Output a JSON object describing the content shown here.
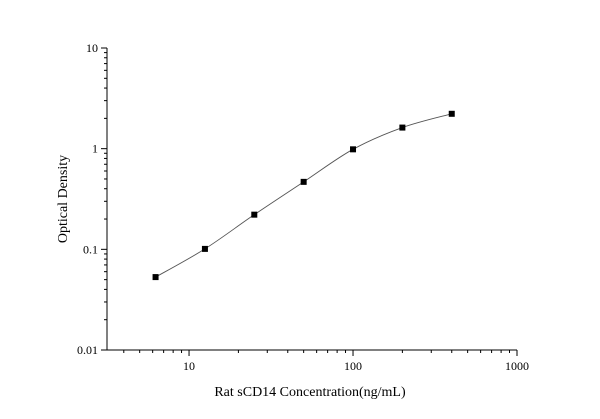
{
  "chart_data": {
    "type": "scatter",
    "xlabel": "Rat sCD14 Concentration(ng/mL)",
    "ylabel": "Optical Density",
    "xscale": "log",
    "yscale": "log",
    "xlim": [
      3.16,
      1000
    ],
    "ylim": [
      0.01,
      10
    ],
    "x_ticks": [
      {
        "value": 10,
        "label": "10"
      },
      {
        "value": 100,
        "label": "100"
      },
      {
        "value": 1000,
        "label": "1000"
      }
    ],
    "y_ticks": [
      {
        "value": 0.01,
        "label": "0.01"
      },
      {
        "value": 0.1,
        "label": "0.1"
      },
      {
        "value": 1,
        "label": "1"
      },
      {
        "value": 10,
        "label": "10"
      }
    ],
    "grid": false,
    "legend": "none",
    "marker": "square",
    "fit_line": true,
    "marker_color": "#000000",
    "line_color": "#555555",
    "series": [
      {
        "x": [
          6.25,
          12.5,
          25,
          50,
          100,
          200,
          400
        ],
        "y": [
          0.053,
          0.101,
          0.221,
          0.468,
          0.985,
          1.62,
          2.22
        ]
      }
    ]
  }
}
